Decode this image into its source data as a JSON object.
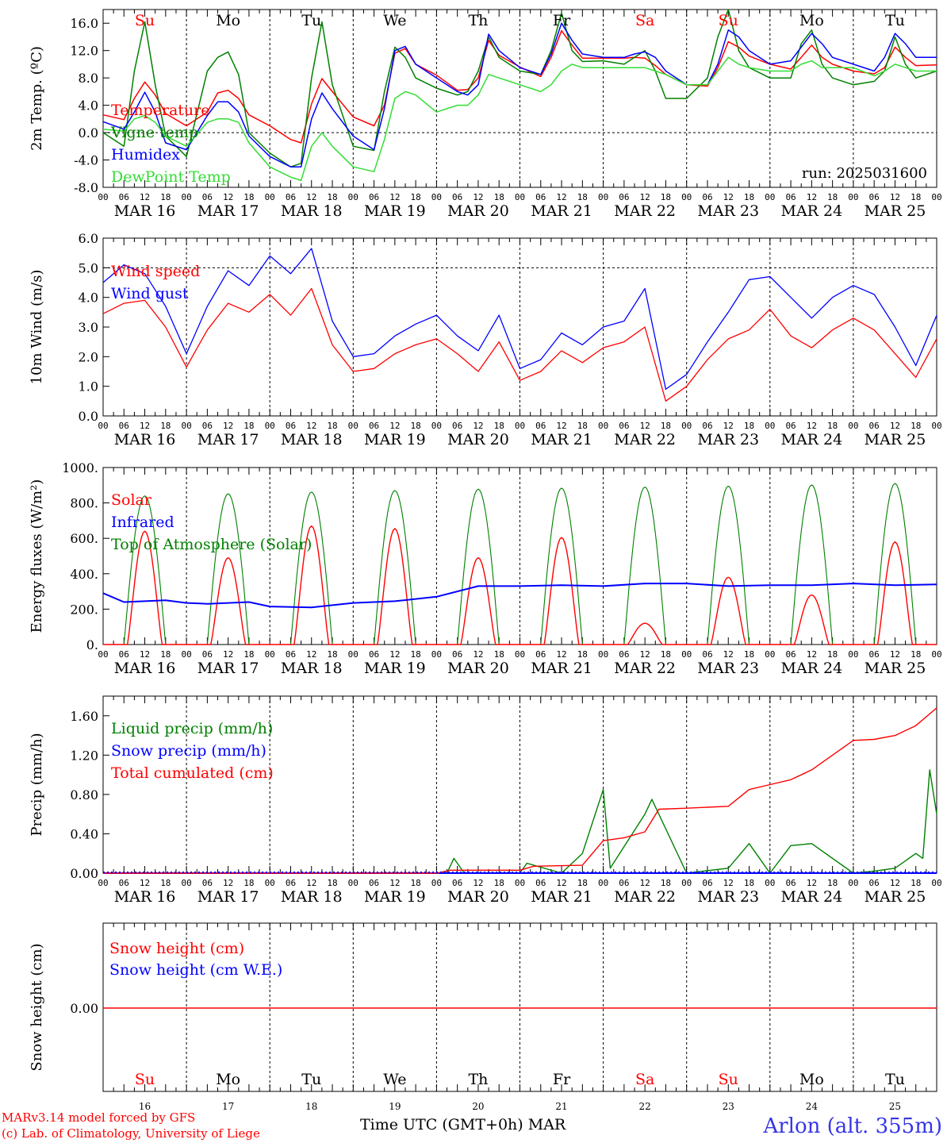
{
  "days": [
    "Su",
    "Mo",
    "Tu",
    "We",
    "Th",
    "Fr",
    "Sa",
    "Su",
    "Mo",
    "Tu"
  ],
  "weekend_flags": [
    true,
    false,
    false,
    false,
    false,
    false,
    true,
    true,
    false,
    false
  ],
  "dates": [
    "MAR 16",
    "MAR 17",
    "MAR 18",
    "MAR 19",
    "MAR 20",
    "MAR 21",
    "MAR 22",
    "MAR 23",
    "MAR 24",
    "MAR 25"
  ],
  "day_numbers": [
    "16",
    "17",
    "18",
    "19",
    "20",
    "21",
    "22",
    "23",
    "24",
    "25"
  ],
  "hour_ticks": [
    "00",
    "06",
    "12",
    "18"
  ],
  "final_hour_tick": "00",
  "x_title": "Time UTC (GMT+0h)",
  "month": "MAR",
  "credits": [
    "MARv3.14 model forced by GFS",
    "(c) Lab. of Climatology, University of Liege"
  ],
  "station": "Arlon (alt. 355m)",
  "colors": {
    "red": "#ff0000",
    "green": "#008000",
    "blue": "#0000ff",
    "lime": "#33dd33",
    "weekend": "#ff0000"
  },
  "chart_data": [
    {
      "type": "line",
      "ylabel": "2m Temp. (ºC)",
      "ylim": [
        -8,
        18
      ],
      "yticks": [
        "-8.0",
        "-4.0",
        "0.0",
        "4.0",
        "8.0",
        "12.0",
        "16.0"
      ],
      "annotation": "run: 2025031600",
      "x_units": "hours since MAR 16 00 UTC",
      "x": [
        0,
        6,
        9,
        12,
        15,
        18,
        24,
        30,
        33,
        36,
        39,
        42,
        48,
        54,
        57,
        60,
        63,
        66,
        72,
        78,
        81,
        84,
        87,
        90,
        96,
        102,
        105,
        108,
        111,
        114,
        120,
        126,
        129,
        132,
        135,
        138,
        144,
        150,
        153,
        156,
        159,
        162,
        168,
        174,
        177,
        180,
        183,
        186,
        192,
        198,
        201,
        204,
        207,
        210,
        216,
        222,
        225,
        228,
        231,
        234,
        240
      ],
      "series": [
        {
          "name": "Temperature",
          "color": "#ff0000",
          "values": [
            2.6,
            1.9,
            5.0,
            7.4,
            5.5,
            2.8,
            1.0,
            3.0,
            5.8,
            6.2,
            5.0,
            2.6,
            1.0,
            -1.0,
            -1.5,
            4.2,
            7.9,
            6.0,
            2.3,
            1.0,
            4.0,
            11.6,
            12.3,
            10.0,
            8.4,
            6.2,
            6.3,
            8.0,
            13.5,
            11.3,
            9.6,
            8.2,
            11.0,
            14.9,
            12.8,
            10.9,
            10.9,
            10.9,
            11.0,
            10.9,
            9.8,
            8.5,
            7.0,
            6.8,
            9.5,
            13.3,
            12.5,
            11.2,
            10.0,
            9.3,
            11.0,
            12.8,
            11.0,
            10.0,
            9.0,
            8.6,
            9.5,
            12.5,
            11.0,
            9.8,
            9.9
          ]
        },
        {
          "name": "Vigne temp",
          "color": "#008000",
          "values": [
            0.0,
            -2.0,
            9.0,
            16.2,
            7.0,
            -0.5,
            -3.5,
            9.0,
            11.0,
            11.8,
            8.5,
            0.0,
            -3.0,
            -5.0,
            -4.5,
            8.0,
            16.2,
            7.0,
            -2.0,
            -2.6,
            6.0,
            12.5,
            11.0,
            8.0,
            6.5,
            5.5,
            6.0,
            9.0,
            14.0,
            11.0,
            9.0,
            8.5,
            12.0,
            17.5,
            12.0,
            10.4,
            10.5,
            10.0,
            11.0,
            12.0,
            9.0,
            5.0,
            5.0,
            8.0,
            14.0,
            18.0,
            12.0,
            9.5,
            8.0,
            8.0,
            13.0,
            15.0,
            10.0,
            8.0,
            7.0,
            7.5,
            9.0,
            14.0,
            10.0,
            8.0,
            9.0
          ]
        },
        {
          "name": "Humidex",
          "color": "#0000ff",
          "values": [
            1.6,
            0.5,
            3.0,
            5.9,
            3.0,
            -1.5,
            -2.5,
            2.5,
            4.5,
            4.5,
            3.0,
            -0.5,
            -3.5,
            -5.0,
            -5.0,
            2.0,
            5.8,
            3.5,
            -0.5,
            -2.5,
            3.5,
            12.0,
            12.6,
            10.0,
            8.0,
            6.0,
            5.5,
            7.0,
            14.4,
            12.0,
            9.5,
            8.5,
            11.5,
            16.0,
            13.5,
            11.5,
            11.0,
            11.0,
            11.5,
            11.8,
            11.0,
            9.0,
            7.0,
            7.0,
            10.0,
            15.0,
            14.0,
            12.0,
            10.0,
            10.5,
            12.5,
            14.5,
            13.0,
            11.0,
            10.0,
            9.0,
            11.0,
            14.5,
            13.0,
            11.0,
            11.0
          ]
        },
        {
          "name": "DewPoint Temp",
          "color": "#33dd33",
          "values": [
            0.5,
            0.2,
            2.0,
            2.5,
            1.5,
            -0.5,
            -2.0,
            1.5,
            2.0,
            2.0,
            1.5,
            -1.5,
            -5.0,
            -6.5,
            -7.0,
            -2.0,
            0.0,
            -2.0,
            -5.0,
            -5.7,
            -1.0,
            5.0,
            6.0,
            5.5,
            3.0,
            4.0,
            4.0,
            5.5,
            8.5,
            8.0,
            7.0,
            6.0,
            7.0,
            9.0,
            10.0,
            9.5,
            9.5,
            9.5,
            9.5,
            9.5,
            9.0,
            8.5,
            7.0,
            7.0,
            9.0,
            11.0,
            10.0,
            9.5,
            9.0,
            9.0,
            10.0,
            10.5,
            9.5,
            9.5,
            9.5,
            8.3,
            9.0,
            10.0,
            9.5,
            9.0,
            9.0
          ]
        }
      ],
      "reference_line": 0
    },
    {
      "type": "line",
      "ylabel": "10m Wind (m/s)",
      "ylim": [
        0,
        6
      ],
      "yticks": [
        "0.0",
        "1.0",
        "2.0",
        "3.0",
        "4.0",
        "5.0",
        "6.0"
      ],
      "x_units": "hours since MAR 16 00 UTC",
      "x": [
        0,
        6,
        12,
        18,
        24,
        30,
        36,
        42,
        48,
        54,
        60,
        66,
        72,
        78,
        84,
        90,
        96,
        102,
        108,
        114,
        120,
        126,
        132,
        138,
        144,
        150,
        156,
        162,
        168,
        174,
        180,
        186,
        192,
        198,
        204,
        210,
        216,
        222,
        228,
        234,
        240
      ],
      "series": [
        {
          "name": "Wind speed",
          "color": "#ff0000",
          "values": [
            3.45,
            3.8,
            3.9,
            3.0,
            1.65,
            2.9,
            3.8,
            3.5,
            4.1,
            3.4,
            4.3,
            2.4,
            1.5,
            1.6,
            2.1,
            2.4,
            2.6,
            2.1,
            1.5,
            2.5,
            1.2,
            1.5,
            2.2,
            1.8,
            2.3,
            2.5,
            3.0,
            0.5,
            1.0,
            1.9,
            2.6,
            2.9,
            3.6,
            2.7,
            2.3,
            2.9,
            3.3,
            2.9,
            2.1,
            1.3,
            2.6
          ]
        },
        {
          "name": "Wind gust",
          "color": "#0000ff",
          "values": [
            4.5,
            5.1,
            4.8,
            3.7,
            2.1,
            3.7,
            4.9,
            4.4,
            5.4,
            4.8,
            5.65,
            3.2,
            2.0,
            2.1,
            2.7,
            3.1,
            3.4,
            2.7,
            2.2,
            3.4,
            1.6,
            1.9,
            2.8,
            2.4,
            3.0,
            3.2,
            4.3,
            0.9,
            1.4,
            2.5,
            3.5,
            4.6,
            4.7,
            4.0,
            3.3,
            4.0,
            4.4,
            4.1,
            3.0,
            1.7,
            3.4
          ]
        }
      ],
      "reference_line": 5
    },
    {
      "type": "line",
      "ylabel": "Energy fluxes (W/m²)",
      "ylim": [
        0,
        1000
      ],
      "yticks": [
        "0.",
        "200.",
        "400.",
        "600.",
        "800.",
        "1000."
      ],
      "x_units": "hours since MAR 16 00 UTC",
      "series": [
        {
          "name": "Solar",
          "color": "#ff0000",
          "daily_peak_values": [
            640,
            490,
            670,
            655,
            490,
            605,
            120,
            380,
            280,
            580
          ]
        },
        {
          "name": "Infrared",
          "color": "#0000ff",
          "x": [
            0,
            6,
            18,
            24,
            30,
            42,
            48,
            60,
            72,
            84,
            96,
            108,
            120,
            132,
            144,
            156,
            168,
            180,
            192,
            204,
            216,
            228,
            240
          ],
          "values": [
            290,
            240,
            250,
            235,
            230,
            240,
            215,
            210,
            235,
            245,
            270,
            330,
            330,
            335,
            330,
            345,
            345,
            330,
            335,
            335,
            345,
            335,
            340
          ]
        },
        {
          "name": "Top of Atmosphere (Solar)",
          "color": "#008000",
          "daily_peak_values": [
            840,
            852,
            862,
            870,
            878,
            884,
            890,
            895,
            902,
            910
          ]
        }
      ]
    },
    {
      "type": "line",
      "ylabel": "Precip (mm/h)",
      "ylim": [
        0,
        1.8
      ],
      "yticks": [
        "0.00",
        "0.40",
        "0.80",
        "1.20",
        "1.60"
      ],
      "x_units": "hours since MAR 16 00 UTC",
      "series": [
        {
          "name": "Liquid precip (mm/h)",
          "color": "#008000",
          "x": [
            0,
            96,
            99,
            101,
            104,
            120,
            122,
            132,
            138,
            144,
            146,
            156,
            158,
            168,
            180,
            186,
            188,
            192,
            198,
            204,
            216,
            222,
            228,
            234,
            236,
            238,
            240
          ],
          "values": [
            0,
            0,
            0,
            0.15,
            0,
            0,
            0.1,
            0,
            0.2,
            0.85,
            0.05,
            0.6,
            0.75,
            0,
            0.05,
            0.3,
            0.2,
            0,
            0.28,
            0.3,
            0,
            0.02,
            0.05,
            0.2,
            0.15,
            1.05,
            0.6
          ]
        },
        {
          "name": "Snow precip (mm/h)",
          "color": "#0000ff",
          "x": [
            0,
            240
          ],
          "values": [
            0,
            0
          ]
        },
        {
          "name": "Total cumulated (cm)",
          "color": "#ff0000",
          "x": [
            0,
            96,
            100,
            120,
            124,
            138,
            144,
            150,
            156,
            160,
            168,
            180,
            186,
            192,
            198,
            204,
            216,
            222,
            228,
            234,
            240
          ],
          "values": [
            0,
            0,
            0.03,
            0.03,
            0.07,
            0.08,
            0.33,
            0.36,
            0.42,
            0.65,
            0.66,
            0.68,
            0.85,
            0.9,
            0.95,
            1.05,
            1.35,
            1.36,
            1.4,
            1.5,
            1.68
          ]
        }
      ]
    },
    {
      "type": "line",
      "ylabel": "Snow height (cm)",
      "ytick": "0.00",
      "ylim": [
        -1,
        1
      ],
      "x_units": "hours since MAR 16 00 UTC",
      "series": [
        {
          "name": "Snow height (cm)",
          "color": "#ff0000",
          "x": [
            0,
            240
          ],
          "values": [
            0,
            0
          ]
        },
        {
          "name": "Snow height (cm W.E.)",
          "color": "#0000ff",
          "x": [],
          "values": []
        }
      ]
    }
  ]
}
